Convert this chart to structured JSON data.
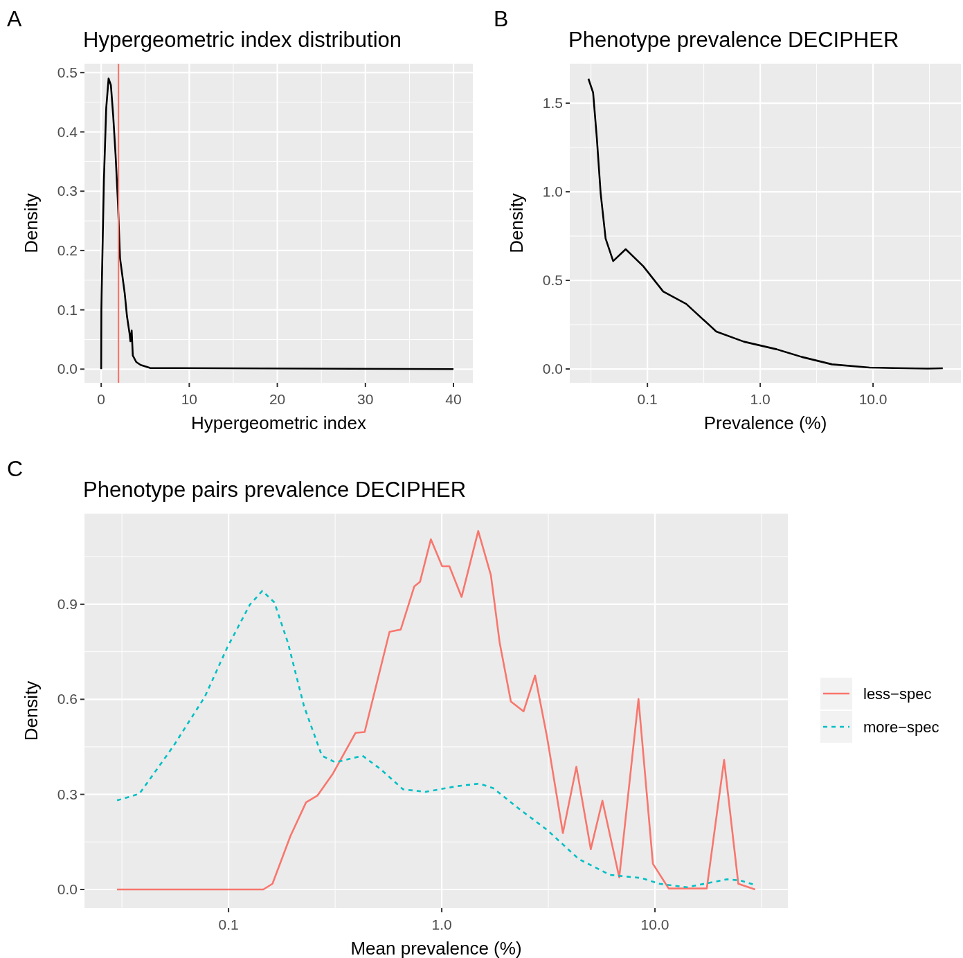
{
  "chart_data": [
    {
      "type": "line",
      "title": "Hypergeometric index distribution",
      "xlabel": "Hypergeometric index",
      "ylabel": "Density",
      "annotations": [
        "A"
      ],
      "xlim": [
        -1.9,
        42.2
      ],
      "ylim": [
        -0.023,
        0.515
      ],
      "xticks": [
        0,
        10,
        20,
        30,
        40
      ],
      "yticks": [
        {
          "value": 0,
          "label": "0.0"
        },
        {
          "value": 0.1,
          "label": "0.1"
        },
        {
          "value": 0.2,
          "label": "0.2"
        },
        {
          "value": 0.3,
          "label": "0.3"
        },
        {
          "value": 0.4,
          "label": "0.4"
        },
        {
          "value": 0.5,
          "label": "0.5"
        }
      ],
      "grid": true,
      "series": [
        {
          "color": "#000000",
          "x": [
            0,
            0.02,
            0.05,
            0.31,
            0.57,
            0.84,
            1.1,
            1.36,
            1.63,
            1.89,
            2.14,
            2.67,
            2.93,
            3.24,
            3.32,
            3.46,
            3.59,
            3.98,
            4.48,
            5.55,
            40
          ],
          "values": [
            0,
            0.1,
            0.128,
            0.32,
            0.44,
            0.49,
            0.479,
            0.428,
            0.362,
            0.284,
            0.187,
            0.128,
            0.089,
            0.058,
            0.047,
            0.065,
            0.023,
            0.012,
            0.007,
            0.002,
            0
          ]
        }
      ],
      "ref_lines": [
        {
          "axis": "x",
          "value": 1.96,
          "color": "#f8766d"
        }
      ]
    },
    {
      "type": "line",
      "title": "Phenotype prevalence DECIPHER",
      "xlabel": "Prevalence (%)",
      "ylabel": "Density",
      "annotations": [
        "B"
      ],
      "log": "x",
      "xlim": [
        0.0205,
        60.1
      ],
      "ylim": [
        -0.078,
        1.723
      ],
      "xticks": [
        {
          "value": 0.1,
          "label": "0.1"
        },
        {
          "value": 1,
          "label": "1.0"
        },
        {
          "value": 10,
          "label": "10.0"
        }
      ],
      "yticks": [
        {
          "value": 0,
          "label": "0.0"
        },
        {
          "value": 0.5,
          "label": "0.5"
        },
        {
          "value": 1,
          "label": "1.0"
        },
        {
          "value": 1.5,
          "label": "1.5"
        }
      ],
      "grid": true,
      "series": [
        {
          "color": "#000000",
          "x": [
            0.03,
            0.033,
            0.0356,
            0.0385,
            0.0426,
            0.0497,
            0.0642,
            0.0919,
            0.138,
            0.221,
            0.408,
            0.717,
            1.4,
            2.33,
            4.33,
            9.3,
            15.6,
            30.5,
            41.5
          ],
          "values": [
            1.638,
            1.56,
            1.305,
            0.992,
            0.736,
            0.609,
            0.676,
            0.58,
            0.437,
            0.367,
            0.211,
            0.154,
            0.111,
            0.068,
            0.026,
            0.008,
            0.005,
            0.002,
            0.004
          ]
        }
      ]
    },
    {
      "type": "line",
      "title": "Phenotype pairs prevalence DECIPHER",
      "xlabel": "Mean prevalence (%)",
      "ylabel": "Density",
      "annotations": [
        "C"
      ],
      "log": "x",
      "xlim": [
        0.0211,
        42
      ],
      "ylim": [
        -0.059,
        1.186
      ],
      "xticks": [
        {
          "value": 0.1,
          "label": "0.1"
        },
        {
          "value": 1,
          "label": "1.0"
        },
        {
          "value": 10,
          "label": "10.0"
        }
      ],
      "yticks": [
        {
          "value": 0,
          "label": "0.0"
        },
        {
          "value": 0.3,
          "label": "0.3"
        },
        {
          "value": 0.6,
          "label": "0.6"
        },
        {
          "value": 0.9,
          "label": "0.9"
        }
      ],
      "grid": true,
      "legend": "right",
      "series": [
        {
          "name": "less−spec",
          "color": "#f8766d",
          "line_style": "solid",
          "x": [
            0.03,
            0.1456,
            0.1607,
            0.195,
            0.231,
            0.261,
            0.309,
            0.394,
            0.435,
            0.569,
            0.642,
            0.743,
            0.791,
            0.889,
            1.004,
            1.086,
            1.239,
            1.483,
            1.7,
            1.87,
            2.11,
            2.42,
            2.74,
            3.12,
            3.7,
            4.28,
            5.0,
            5.67,
            6.8,
            8.37,
            9.78,
            11.6,
            17.5,
            21.1,
            24.6,
            29.5
          ],
          "values": [
            0,
            0,
            0.018,
            0.168,
            0.275,
            0.296,
            0.366,
            0.494,
            0.497,
            0.813,
            0.82,
            0.956,
            0.971,
            1.105,
            1.02,
            1.02,
            0.923,
            1.131,
            0.992,
            0.778,
            0.593,
            0.562,
            0.675,
            0.48,
            0.178,
            0.387,
            0.127,
            0.28,
            0.038,
            0.601,
            0.081,
            0.003,
            0.003,
            0.409,
            0.018,
            0
          ]
        },
        {
          "name": "more−spec",
          "color": "#00bfc4",
          "line_style": "dashed",
          "x": [
            0.03,
            0.0382,
            0.0551,
            0.0774,
            0.0987,
            0.126,
            0.144,
            0.164,
            0.19,
            0.226,
            0.274,
            0.317,
            0.425,
            0.516,
            0.658,
            0.839,
            1.18,
            1.5,
            1.74,
            2.33,
            3.12,
            4.39,
            6.15,
            8.65,
            10.5,
            14.1,
            21.8,
            25.3,
            29.5
          ],
          "values": [
            0.281,
            0.302,
            0.452,
            0.608,
            0.764,
            0.899,
            0.942,
            0.906,
            0.778,
            0.578,
            0.422,
            0.401,
            0.422,
            0.38,
            0.316,
            0.308,
            0.326,
            0.334,
            0.32,
            0.252,
            0.188,
            0.096,
            0.046,
            0.036,
            0.018,
            0.007,
            0.032,
            0.028,
            0.014
          ]
        }
      ]
    }
  ]
}
